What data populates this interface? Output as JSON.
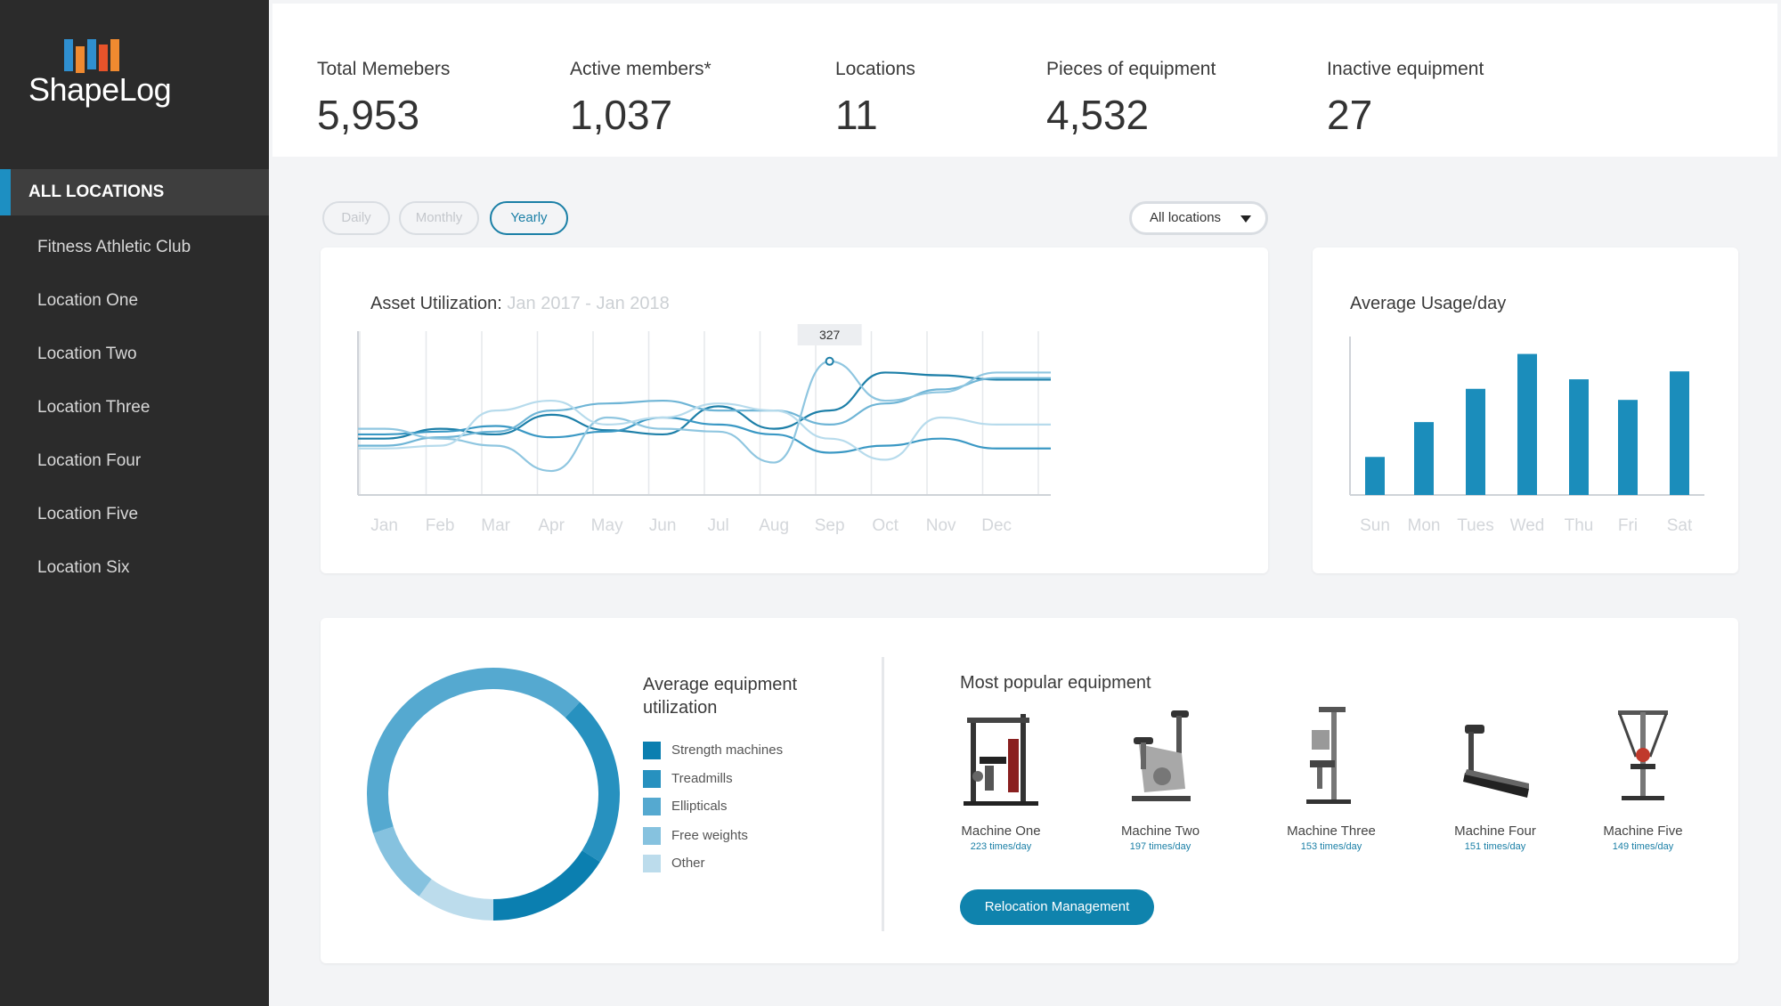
{
  "sidebar": {
    "logo_text": "ShapeLog",
    "active_item": "ALL LOCATIONS",
    "items": [
      "Fitness Athletic Club",
      "Location One",
      "Location Two",
      "Location Three",
      "Location Four",
      "Location Five",
      "Location Six"
    ]
  },
  "stats": [
    {
      "label": "Total Memebers",
      "value": "5,953"
    },
    {
      "label": "Active members*",
      "value": "1,037"
    },
    {
      "label": "Locations",
      "value": "11"
    },
    {
      "label": "Pieces of equipment",
      "value": "4,532"
    },
    {
      "label": "Inactive equipment",
      "value": "27"
    }
  ],
  "period": {
    "options": [
      "Daily",
      "Monthly",
      "Yearly"
    ],
    "selected": "Yearly"
  },
  "location_filter": {
    "selected": "All locations"
  },
  "utilization": {
    "title": "Asset Utilization:",
    "range": "Jan 2017 - Jan 2018",
    "tooltip": "327"
  },
  "usage": {
    "title": "Average Usage/day"
  },
  "equipment_util": {
    "title_line1": "Average equipment",
    "title_line2": "utilization",
    "legend": [
      {
        "label": "Strength machines",
        "color": "#0b7fb0"
      },
      {
        "label": "Treadmills",
        "color": "#2791bf"
      },
      {
        "label": "Ellipticals",
        "color": "#55a9d0"
      },
      {
        "label": "Free weights",
        "color": "#86c2df"
      },
      {
        "label": "Other",
        "color": "#bcdcec"
      }
    ]
  },
  "popular": {
    "title": "Most popular equipment",
    "machines": [
      {
        "name": "Machine One",
        "rate": "223 times/day"
      },
      {
        "name": "Machine Two",
        "rate": "197 times/day"
      },
      {
        "name": "Machine Three",
        "rate": "153 times/day"
      },
      {
        "name": "Machine Four",
        "rate": "151 times/day"
      },
      {
        "name": "Machine Five",
        "rate": "149 times/day"
      }
    ],
    "button": "Relocation Management"
  },
  "chart_data": [
    {
      "type": "line",
      "title": "Asset Utilization:",
      "subtitle": "Jan 2017 - Jan 2018",
      "categories": [
        "Jan",
        "Feb",
        "Mar",
        "Apr",
        "May",
        "Jun",
        "Jul",
        "Aug",
        "Sep",
        "Oct",
        "Nov",
        "Dec"
      ],
      "annotation": {
        "category": "Sep",
        "text": "327"
      },
      "grid": true,
      "series": [
        {
          "color": "#1d7fa8",
          "values": [
            0.35,
            0.42,
            0.38,
            0.52,
            0.41,
            0.38,
            0.58,
            0.42,
            0.55,
            0.82,
            0.8,
            0.77
          ]
        },
        {
          "color": "#3a98c4",
          "values": [
            0.38,
            0.4,
            0.44,
            0.36,
            0.4,
            0.5,
            0.45,
            0.38,
            0.25,
            0.3,
            0.35,
            0.28
          ]
        },
        {
          "color": "#6fb5d6",
          "values": [
            0.3,
            0.36,
            0.4,
            0.55,
            0.6,
            0.62,
            0.55,
            0.55,
            0.45,
            0.6,
            0.7,
            0.78
          ]
        },
        {
          "color": "#8fc6e0",
          "values": [
            0.42,
            0.35,
            0.3,
            0.12,
            0.5,
            0.42,
            0.4,
            0.18,
            0.9,
            0.62,
            0.68,
            0.82
          ]
        },
        {
          "color": "#b7dbec",
          "values": [
            0.28,
            0.3,
            0.55,
            0.62,
            0.45,
            0.5,
            0.6,
            0.55,
            0.35,
            0.2,
            0.5,
            0.45
          ]
        }
      ]
    },
    {
      "type": "bar",
      "title": "Average Usage/day",
      "categories": [
        "Sun",
        "Mon",
        "Tues",
        "Wed",
        "Thu",
        "Fri",
        "Sat"
      ],
      "values": [
        24,
        46,
        67,
        89,
        73,
        60,
        78
      ],
      "ylim": [
        0,
        100
      ]
    },
    {
      "type": "pie",
      "title": "Average equipment utilization",
      "labels": [
        "Strength machines",
        "Treadmills",
        "Ellipticals",
        "Free weights",
        "Other"
      ],
      "values": [
        16,
        22,
        42,
        10,
        10
      ]
    }
  ]
}
